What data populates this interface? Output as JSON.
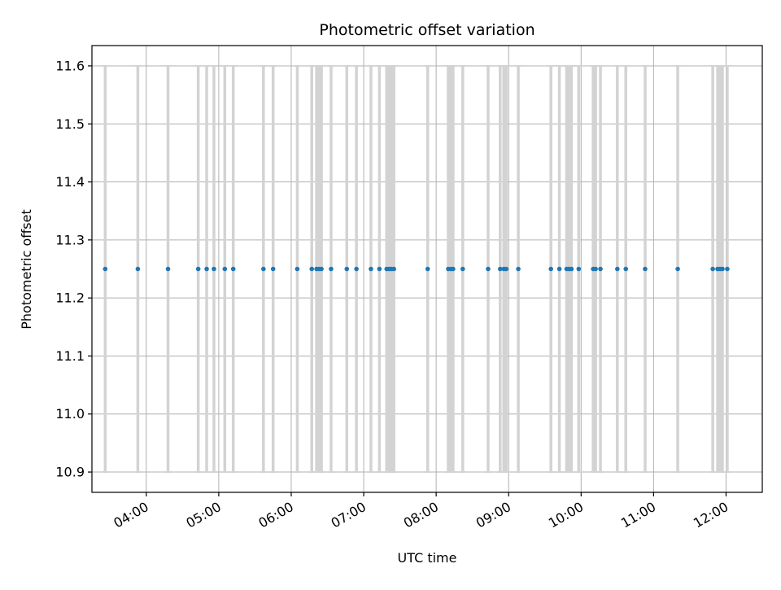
{
  "colors": {
    "point": "#1f77b4",
    "errorbar": "#d3d3d3",
    "grid": "#b0b0b0",
    "axes": "#000000",
    "background": "#ffffff"
  },
  "chart_data": {
    "type": "scatter",
    "title": "Photometric offset variation",
    "xlabel": "UTC time",
    "ylabel": "Photometric offset",
    "grid": true,
    "x_is_time": true,
    "xlim": [
      "03:15",
      "12:30"
    ],
    "ylim": [
      10.865,
      11.635
    ],
    "yticks": [
      10.9,
      11.0,
      11.1,
      11.2,
      11.3,
      11.4,
      11.5,
      11.6
    ],
    "ytick_labels": [
      "10.9",
      "11.0",
      "11.1",
      "11.2",
      "11.3",
      "11.4",
      "11.5",
      "11.6"
    ],
    "xticks": [
      "04:00",
      "05:00",
      "06:00",
      "07:00",
      "08:00",
      "09:00",
      "10:00",
      "11:00",
      "12:00"
    ],
    "xtick_labels": [
      "04:00",
      "05:00",
      "06:00",
      "07:00",
      "08:00",
      "09:00",
      "10:00",
      "11:00",
      "12:00"
    ],
    "series": [
      {
        "marker": "dot",
        "error_low": 10.9,
        "error_high": 11.6,
        "x": [
          "03:26",
          "03:53",
          "04:18",
          "04:43",
          "04:50",
          "04:56",
          "05:05",
          "05:12",
          "05:37",
          "05:45",
          "06:05",
          "06:17",
          "06:21",
          "06:23",
          "06:25",
          "06:33",
          "06:46",
          "06:54",
          "07:06",
          "07:13",
          "07:19",
          "07:21",
          "07:23",
          "07:25",
          "07:53",
          "08:10",
          "08:12",
          "08:14",
          "08:22",
          "08:43",
          "08:53",
          "08:56",
          "08:58",
          "09:08",
          "09:35",
          "09:42",
          "09:48",
          "09:50",
          "09:52",
          "09:58",
          "10:10",
          "10:12",
          "10:16",
          "10:30",
          "10:37",
          "10:53",
          "11:20",
          "11:49",
          "11:53",
          "11:55",
          "11:57",
          "12:01"
        ],
        "y": [
          11.25,
          11.25,
          11.25,
          11.25,
          11.25,
          11.25,
          11.25,
          11.25,
          11.25,
          11.25,
          11.25,
          11.25,
          11.25,
          11.25,
          11.25,
          11.25,
          11.25,
          11.25,
          11.25,
          11.25,
          11.25,
          11.25,
          11.25,
          11.25,
          11.25,
          11.25,
          11.25,
          11.25,
          11.25,
          11.25,
          11.25,
          11.25,
          11.25,
          11.25,
          11.25,
          11.25,
          11.25,
          11.25,
          11.25,
          11.25,
          11.25,
          11.25,
          11.25,
          11.25,
          11.25,
          11.25,
          11.25,
          11.25,
          11.25,
          11.25,
          11.25,
          11.25
        ]
      }
    ]
  }
}
